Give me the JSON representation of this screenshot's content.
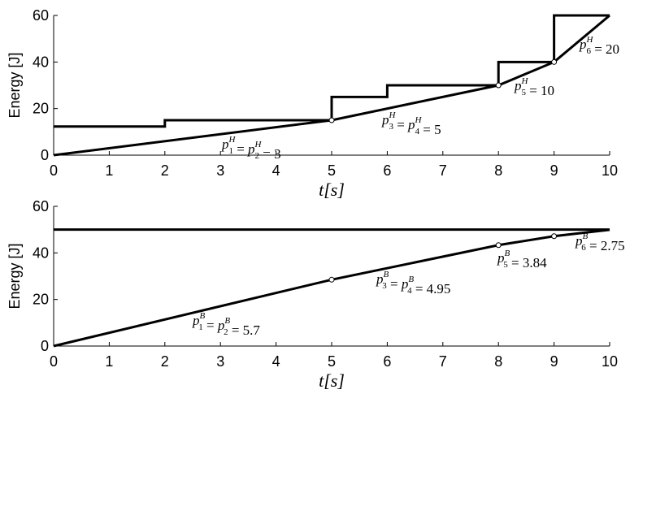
{
  "chart_data": [
    {
      "type": "line",
      "xlabel": "t[s]",
      "ylabel": "Energy [J]",
      "xlim": [
        0,
        10
      ],
      "xticks": [
        0,
        1,
        2,
        3,
        4,
        5,
        6,
        7,
        8,
        9,
        10
      ],
      "ylim": [
        0,
        60
      ],
      "yticks": [
        0,
        20,
        40,
        60
      ],
      "series": [
        {
          "color": "#000000",
          "x": [
            0,
            2,
            2,
            5,
            5,
            6,
            6,
            8,
            8,
            9,
            9,
            10
          ],
          "values": [
            12.3,
            12.3,
            15,
            15,
            25,
            25,
            30,
            30,
            40,
            40,
            60,
            60
          ]
        },
        {
          "color": "#000000",
          "x": [
            0,
            5,
            8,
            9,
            10
          ],
          "values": [
            0,
            15,
            30,
            40,
            60
          ]
        }
      ],
      "annotations": [
        [
          [
            "p",
            "1",
            "H"
          ],
          " = ",
          [
            "p",
            "2",
            "H"
          ],
          " = 3"
        ],
        [
          [
            "p",
            "3",
            "H"
          ],
          " = ",
          [
            "p",
            "4",
            "H"
          ],
          " = 5"
        ],
        [
          [
            "p",
            "5",
            "H"
          ],
          " = 10"
        ],
        [
          [
            "p",
            "6",
            "H"
          ],
          " = 20"
        ]
      ]
    },
    {
      "type": "line",
      "xlabel": "t[s]",
      "ylabel": "Energy [J]",
      "xlim": [
        0,
        10
      ],
      "xticks": [
        0,
        1,
        2,
        3,
        4,
        5,
        6,
        7,
        8,
        9,
        10
      ],
      "ylim": [
        0,
        60
      ],
      "yticks": [
        0,
        20,
        40,
        60
      ],
      "series": [
        {
          "color": "#000000",
          "x": [
            0,
            10
          ],
          "values": [
            50,
            50
          ]
        },
        {
          "color": "#000000",
          "x": [
            0,
            5,
            8,
            9,
            10
          ],
          "values": [
            0,
            28.5,
            43.35,
            47.19,
            49.94
          ]
        }
      ],
      "annotations": [
        [
          [
            "p",
            "1",
            "B"
          ],
          " = ",
          [
            "p",
            "2",
            "B"
          ],
          " = 5.7"
        ],
        [
          [
            "p",
            "3",
            "B"
          ],
          " = ",
          [
            "p",
            "4",
            "B"
          ],
          " = 4.95"
        ],
        [
          [
            "p",
            "5",
            "B"
          ],
          " = 3.84"
        ],
        [
          [
            "p",
            "6",
            "B"
          ],
          " = 2.75"
        ]
      ]
    }
  ]
}
